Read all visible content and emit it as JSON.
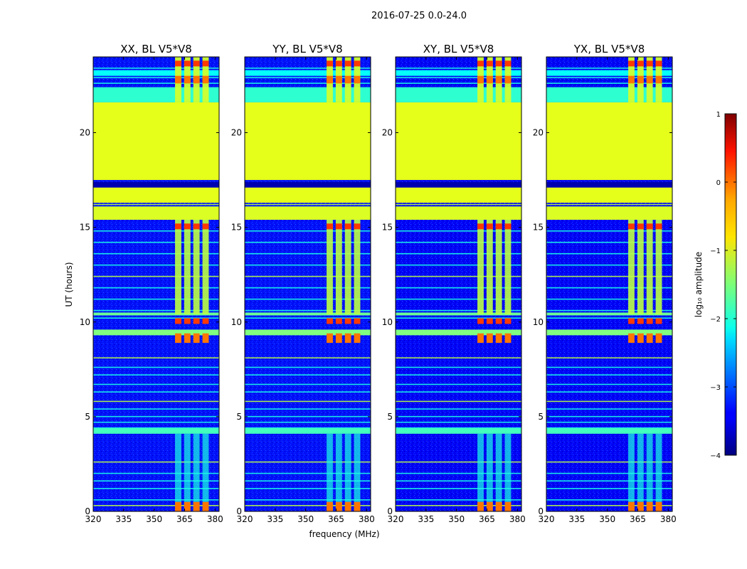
{
  "figure": {
    "suptitle": "2016-07-25 0.0-24.0",
    "xlabel": "frequency (MHz)",
    "ylabel": "UT (hours)",
    "colorbar": {
      "label": "log₁₀ amplitude",
      "range": [
        -4,
        1
      ],
      "ticks": [
        "1",
        "0",
        "−1",
        "−2",
        "−3",
        "−4"
      ],
      "colormap": "jet"
    }
  },
  "chart_data": [
    {
      "type": "heatmap",
      "title": "XX, BL V5*V8",
      "xlabel": "frequency (MHz)",
      "ylabel": "UT (hours)",
      "xlim": [
        320,
        382
      ],
      "ylim": [
        0,
        24
      ],
      "xticks": [
        "320",
        "335",
        "350",
        "365",
        "380"
      ],
      "yticks": [
        "0",
        "5",
        "10",
        "15",
        "20"
      ],
      "flagged_ut_range": [
        17.5,
        21.6
      ],
      "rfi_band_mhz": [
        360,
        378
      ],
      "background_log_amplitude": -3.3
    },
    {
      "type": "heatmap",
      "title": "YY, BL V5*V8",
      "xlabel": "frequency (MHz)",
      "ylabel": "UT (hours)",
      "xlim": [
        320,
        382
      ],
      "ylim": [
        0,
        24
      ],
      "xticks": [
        "320",
        "335",
        "350",
        "365",
        "380"
      ],
      "yticks": [
        "0",
        "5",
        "10",
        "15",
        "20"
      ],
      "flagged_ut_range": [
        17.5,
        21.6
      ],
      "rfi_band_mhz": [
        360,
        378
      ],
      "background_log_amplitude": -3.3
    },
    {
      "type": "heatmap",
      "title": "XY, BL V5*V8",
      "xlabel": "frequency (MHz)",
      "ylabel": "UT (hours)",
      "xlim": [
        320,
        382
      ],
      "ylim": [
        0,
        24
      ],
      "xticks": [
        "320",
        "335",
        "350",
        "365",
        "380"
      ],
      "yticks": [
        "0",
        "5",
        "10",
        "15",
        "20"
      ],
      "flagged_ut_range": [
        17.5,
        21.6
      ],
      "rfi_band_mhz": [
        360,
        378
      ],
      "background_log_amplitude": -3.4
    },
    {
      "type": "heatmap",
      "title": "YX, BL V5*V8",
      "xlabel": "frequency (MHz)",
      "ylabel": "UT (hours)",
      "xlim": [
        320,
        382
      ],
      "ylim": [
        0,
        24
      ],
      "xticks": [
        "320",
        "335",
        "350",
        "365",
        "380"
      ],
      "yticks": [
        "0",
        "5",
        "10",
        "15",
        "20"
      ],
      "flagged_ut_range": [
        17.5,
        21.6
      ],
      "rfi_band_mhz": [
        360,
        378
      ],
      "background_log_amplitude": -3.4
    }
  ]
}
